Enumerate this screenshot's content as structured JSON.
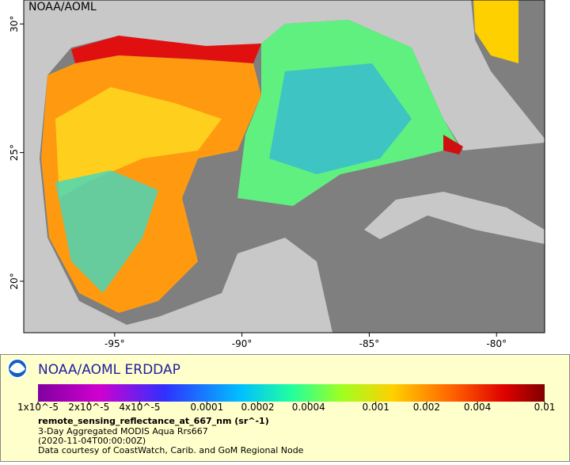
{
  "map": {
    "watermark": "NOAA/AOML",
    "xlim": [
      -98.57,
      -78.11
    ],
    "ylim": [
      18.0,
      30.93
    ],
    "xticks": [
      {
        "value": -95,
        "label": "-95°"
      },
      {
        "value": -90,
        "label": "-90°"
      },
      {
        "value": -85,
        "label": "-85°"
      },
      {
        "value": -80,
        "label": "-80°"
      }
    ],
    "yticks": [
      {
        "value": 20,
        "label": "20°"
      },
      {
        "value": 25,
        "label": "25°"
      },
      {
        "value": 30,
        "label": "30°"
      }
    ]
  },
  "legend": {
    "header": "NOAA/AOML ERDDAP",
    "colorbar_lim": [
      1e-05,
      0.01
    ],
    "log_scale": true,
    "colorbar_ticks": [
      {
        "value": 1e-05,
        "label": "1x10^-5"
      },
      {
        "value": 2e-05,
        "label": "2x10^-5"
      },
      {
        "value": 4e-05,
        "label": "4x10^-5"
      },
      0.0001,
      0.0002,
      0.0004,
      0.001,
      0.002,
      0.004,
      0.01
    ],
    "variable": "remote_sensing_reflectance_at_667_nm (sr^-1)",
    "lines": [
      "3-Day Aggregated MODIS Aqua Rrs667",
      "(2020-11-04T00:00:00Z)",
      "Data courtesy of CoastWatch, Carib. and GoM Regional Node"
    ]
  }
}
